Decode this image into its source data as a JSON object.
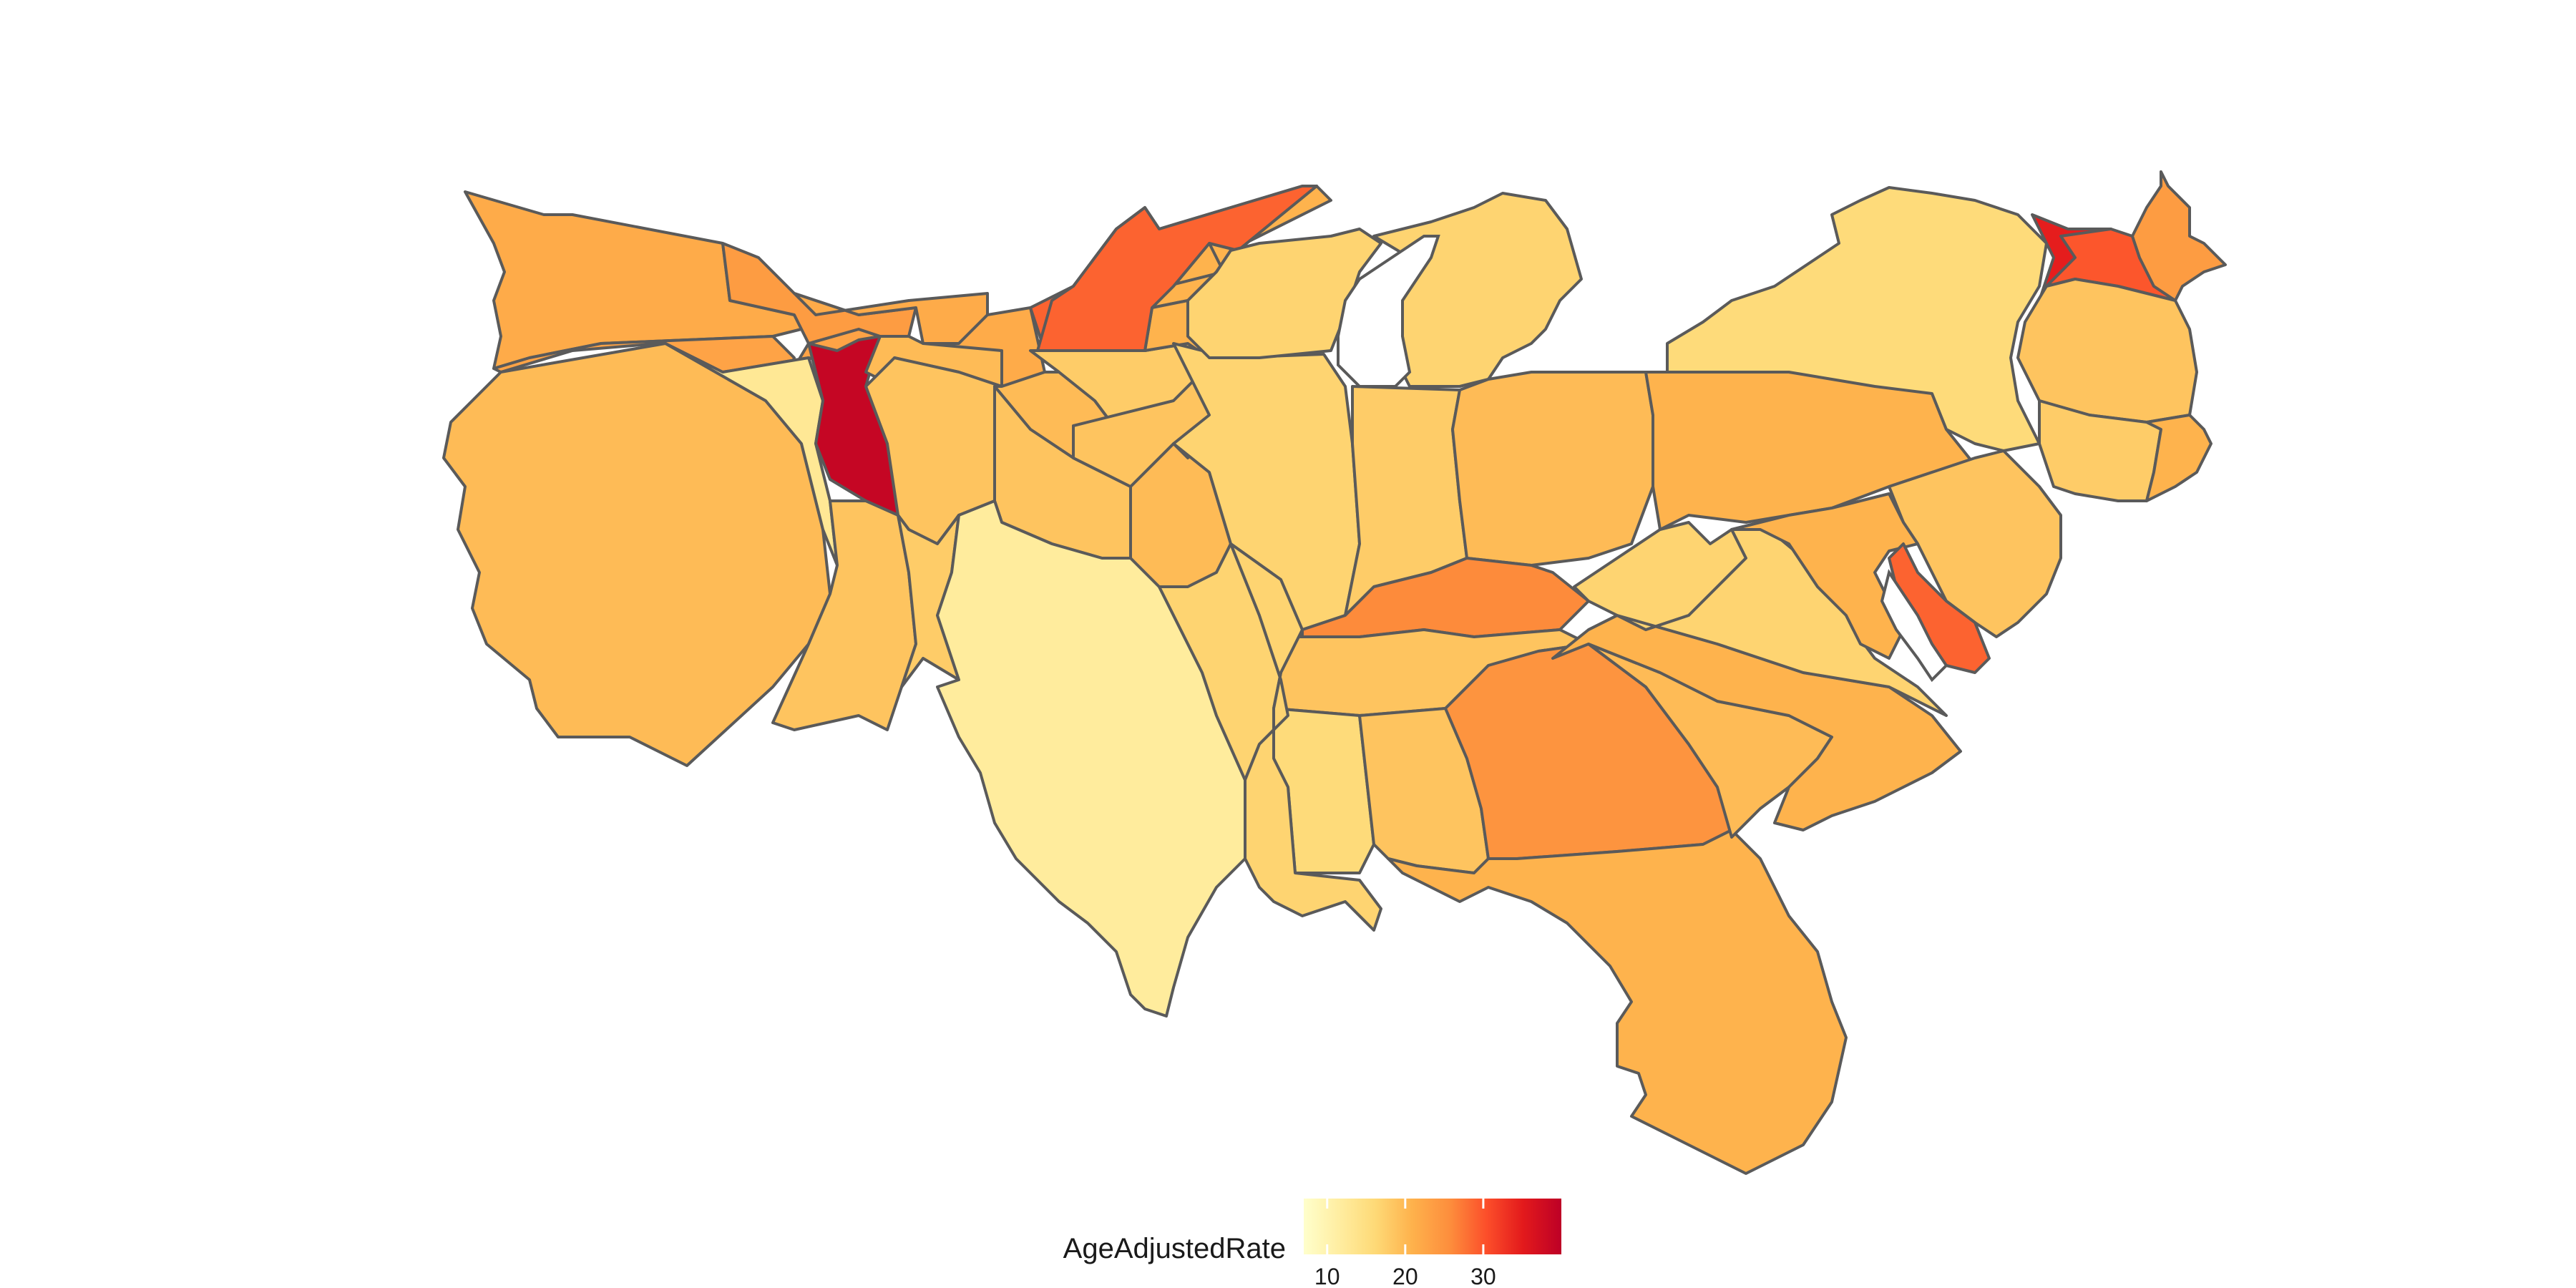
{
  "legend": {
    "title": "AgeAdjustedRate",
    "ticks": [
      "10",
      "20",
      "30"
    ],
    "tick_values": [
      10,
      20,
      30
    ],
    "min": 7,
    "max": 40,
    "colors": [
      "#ffffcc",
      "#ffeda0",
      "#fed976",
      "#feb24c",
      "#fd8d3c",
      "#fc4e2a",
      "#e31a1c",
      "#bd0026"
    ]
  },
  "regions": [
    {
      "name": "washington",
      "value": 22
    },
    {
      "name": "oregon",
      "value": 23
    },
    {
      "name": "california",
      "value": 20
    },
    {
      "name": "idaho-panhandle",
      "value": 24
    },
    {
      "name": "nevada",
      "value": 13
    },
    {
      "name": "utah",
      "value": 39
    },
    {
      "name": "arizona",
      "value": 19
    },
    {
      "name": "montana",
      "value": 22
    },
    {
      "name": "wyoming",
      "value": 20
    },
    {
      "name": "colorado",
      "value": 19
    },
    {
      "name": "new-mexico",
      "value": 18
    },
    {
      "name": "north-dakota",
      "value": 29
    },
    {
      "name": "south-dakota",
      "value": 27
    },
    {
      "name": "nebraska",
      "value": 22
    },
    {
      "name": "kansas",
      "value": 20
    },
    {
      "name": "oklahoma",
      "value": 19
    },
    {
      "name": "texas",
      "value": 12
    },
    {
      "name": "minnesota",
      "value": 21
    },
    {
      "name": "iowa",
      "value": 18
    },
    {
      "name": "missouri",
      "value": 19
    },
    {
      "name": "arkansas",
      "value": 20
    },
    {
      "name": "louisiana",
      "value": 17
    },
    {
      "name": "wisconsin",
      "value": 21
    },
    {
      "name": "illinois",
      "value": 17
    },
    {
      "name": "michigan-upper",
      "value": 17
    },
    {
      "name": "michigan-lower",
      "value": 17
    },
    {
      "name": "indiana",
      "value": 18
    },
    {
      "name": "kentucky",
      "value": 26
    },
    {
      "name": "tennessee",
      "value": 19
    },
    {
      "name": "mississippi",
      "value": 16
    },
    {
      "name": "alabama",
      "value": 19
    },
    {
      "name": "georgia",
      "value": 25
    },
    {
      "name": "florida",
      "value": 21
    },
    {
      "name": "ohio",
      "value": 20
    },
    {
      "name": "west-virginia",
      "value": 17
    },
    {
      "name": "virginia",
      "value": 17
    },
    {
      "name": "north-carolina",
      "value": 21
    },
    {
      "name": "south-carolina",
      "value": 20
    },
    {
      "name": "pennsylvania",
      "value": 21
    },
    {
      "name": "new-york",
      "value": 16
    },
    {
      "name": "new-jersey",
      "value": 19
    },
    {
      "name": "maryland",
      "value": 21
    },
    {
      "name": "delaware",
      "value": 29
    },
    {
      "name": "vermont",
      "value": 35
    },
    {
      "name": "new-hampshire",
      "value": 30
    },
    {
      "name": "maine",
      "value": 24
    },
    {
      "name": "massachusetts",
      "value": 19
    },
    {
      "name": "connecticut",
      "value": 18
    },
    {
      "name": "rhode-island",
      "value": 21
    }
  ]
}
